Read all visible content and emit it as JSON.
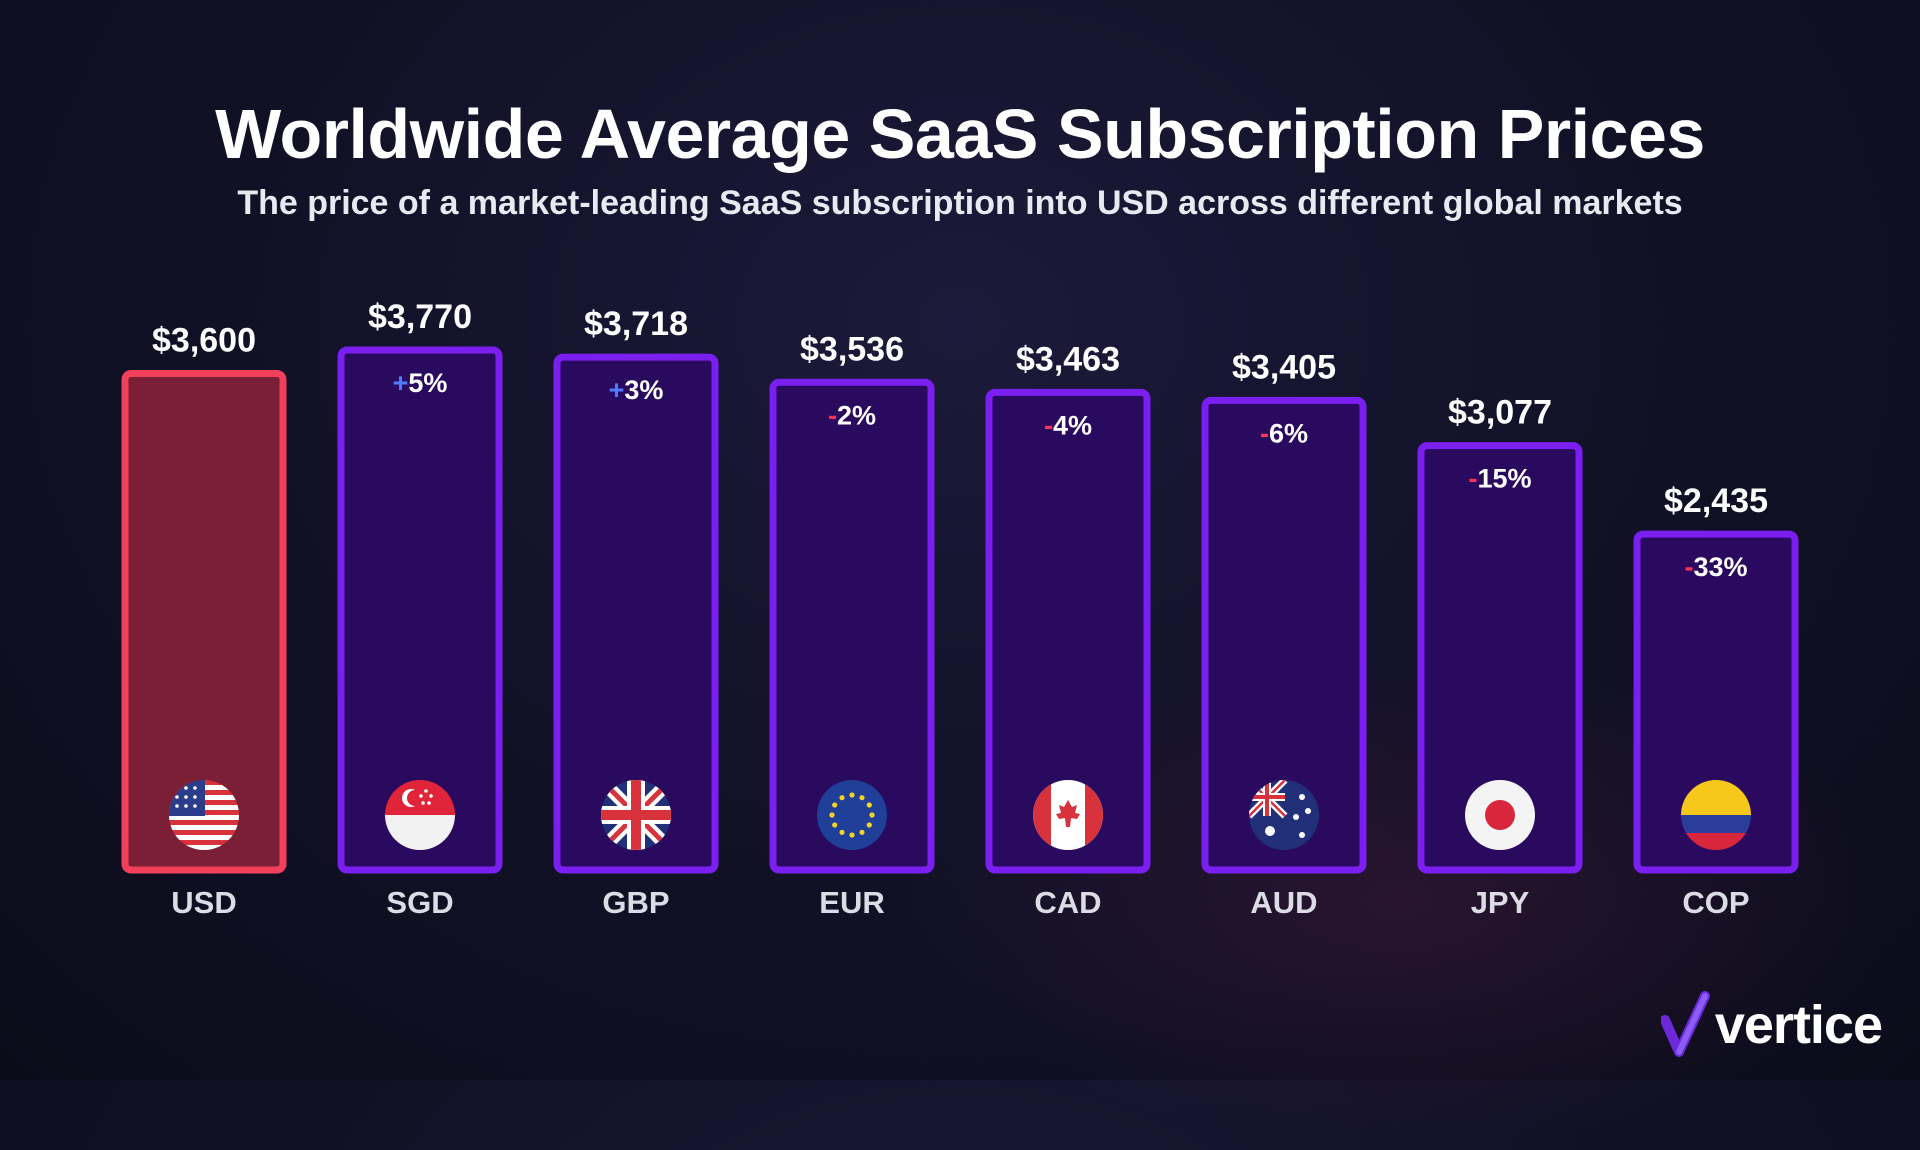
{
  "title": "Worldwide Average SaaS Subscription Prices",
  "subtitle": "The price of a market-leading SaaS subscription into USD across different global markets",
  "brand": {
    "name": "vertice",
    "color_accent": "#7c3aed"
  },
  "colors": {
    "baseline_fill": "#7a1f36",
    "baseline_border": "#f2405c",
    "bar_fill": "#2a0a5e",
    "bar_border": "#7a1ff0",
    "positive_sign": "#4d7cff",
    "negative_sign": "#ff3355"
  },
  "chart_data": {
    "type": "bar",
    "title": "Worldwide Average SaaS Subscription Prices",
    "categories": [
      "USD",
      "SGD",
      "GBP",
      "EUR",
      "CAD",
      "AUD",
      "JPY",
      "COP"
    ],
    "values": [
      3600,
      3770,
      3718,
      3536,
      3463,
      3405,
      3077,
      2435
    ],
    "value_labels": [
      "$3,600",
      "$3,770",
      "$3,718",
      "$3,536",
      "$3,463",
      "$3,405",
      "$3,077",
      "$2,435"
    ],
    "change_signs": [
      "",
      "+",
      "+",
      "-",
      "-",
      "-",
      "-",
      "-"
    ],
    "change_values": [
      "",
      "5%",
      "3%",
      "2%",
      "4%",
      "6%",
      "15%",
      "33%"
    ],
    "flags": [
      "us-flag-icon",
      "singapore-flag-icon",
      "uk-flag-icon",
      "eu-flag-icon",
      "canada-flag-icon",
      "australia-flag-icon",
      "japan-flag-icon",
      "colombia-flag-icon"
    ],
    "baseline_category": "USD",
    "ylim": [
      0,
      3770
    ],
    "xlabel": "",
    "ylabel": "",
    "grid": false,
    "legend": "none"
  }
}
